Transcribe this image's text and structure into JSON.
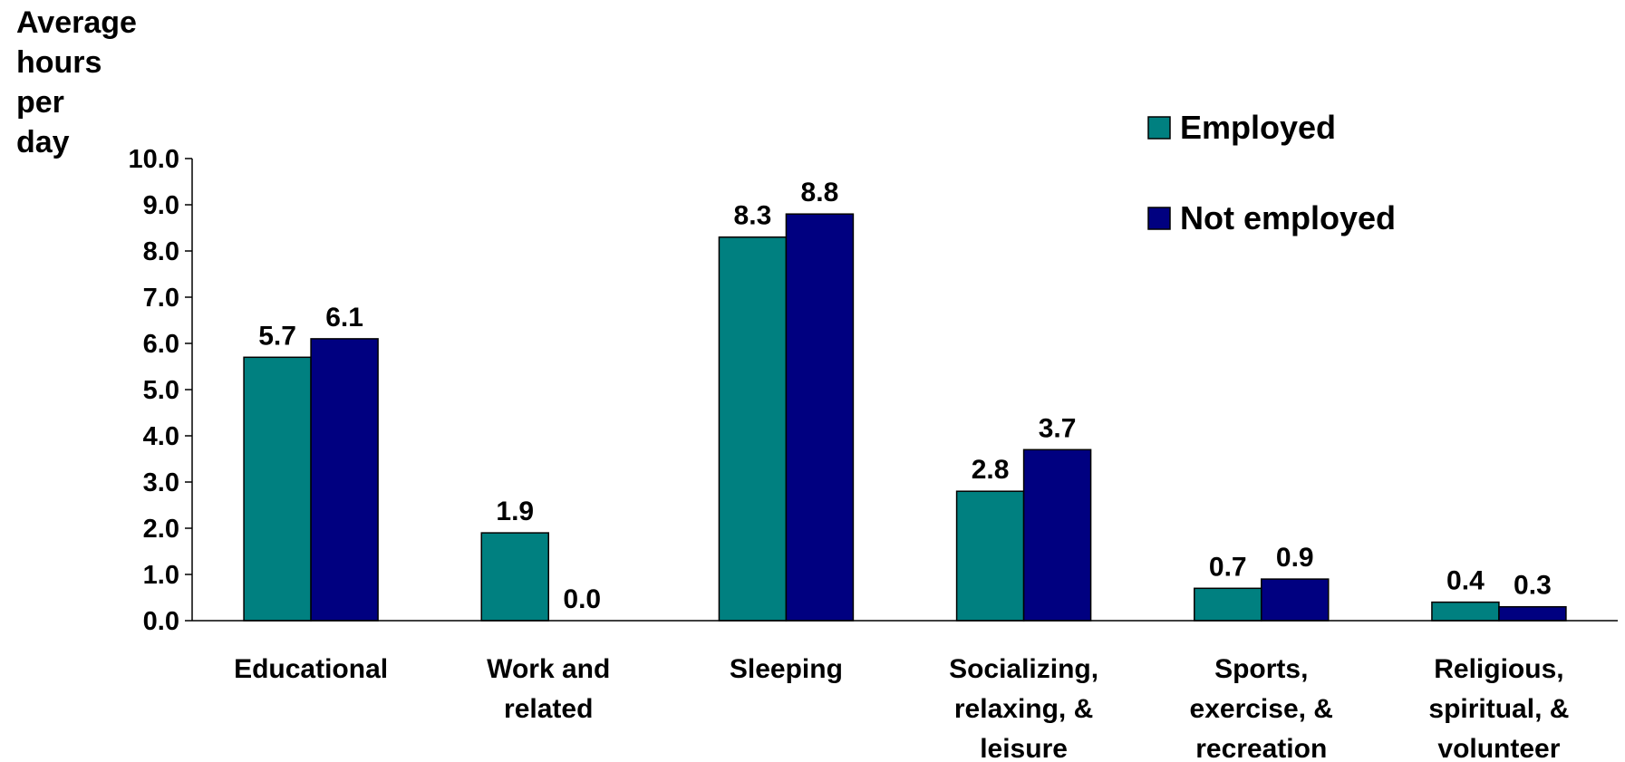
{
  "chart_data": {
    "type": "bar",
    "ylabel_lines": [
      "Average",
      "hours",
      "per",
      "day"
    ],
    "ylim": [
      0,
      10
    ],
    "yticks": [
      "0.0",
      "1.0",
      "2.0",
      "3.0",
      "4.0",
      "5.0",
      "6.0",
      "7.0",
      "8.0",
      "9.0",
      "10.0"
    ],
    "categories": [
      [
        "Educational"
      ],
      [
        "Work and",
        "related"
      ],
      [
        "Sleeping"
      ],
      [
        "Socializing,",
        "relaxing, &",
        "leisure"
      ],
      [
        "Sports,",
        "exercise, &",
        "recreation"
      ],
      [
        "Religious,",
        "spiritual, &",
        "volunteer"
      ]
    ],
    "series": [
      {
        "name": "Employed",
        "color": "#008080",
        "values": [
          5.7,
          1.9,
          8.3,
          2.8,
          0.7,
          0.4
        ],
        "labels": [
          "5.7",
          "1.9",
          "8.3",
          "2.8",
          "0.7",
          "0.4"
        ]
      },
      {
        "name": "Not employed",
        "color": "#000080",
        "values": [
          6.1,
          0.0,
          8.8,
          3.7,
          0.9,
          0.3
        ],
        "labels": [
          "6.1",
          "0.0",
          "8.8",
          "3.7",
          "0.9",
          "0.3"
        ]
      }
    ],
    "grid": false,
    "legend_position": "top-right"
  }
}
